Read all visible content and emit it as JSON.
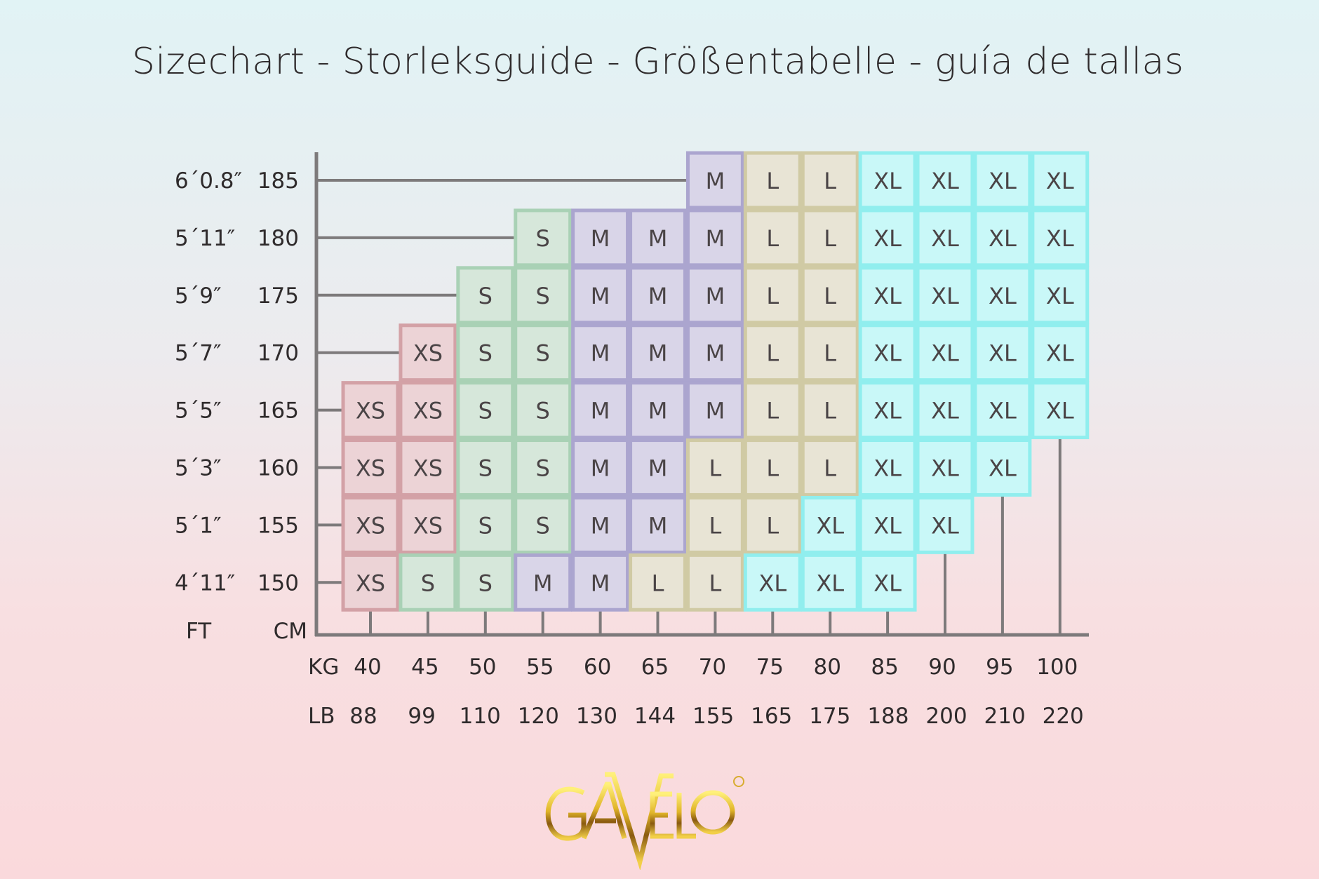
{
  "title": "Sizechart - Storleksguide - Größentabelle - guía de tallas",
  "logo_text": "GAVELO",
  "chart_data": {
    "type": "table",
    "y_header_ft": "FT",
    "y_header_cm": "CM",
    "x_header_kg": "KG",
    "x_header_lb": "LB",
    "height_ft": [
      "6´0.8″",
      "5´11″",
      "5´9″",
      "5´7″",
      "5´5″",
      "5´3″",
      "5´1″",
      "4´11″"
    ],
    "height_cm": [
      "185",
      "180",
      "175",
      "170",
      "165",
      "160",
      "155",
      "150"
    ],
    "weight_kg": [
      "40",
      "45",
      "50",
      "55",
      "60",
      "65",
      "70",
      "75",
      "80",
      "85",
      "90",
      "95",
      "100"
    ],
    "weight_lb": [
      "88",
      "99",
      "110",
      "120",
      "130",
      "144",
      "155",
      "165",
      "175",
      "188",
      "200",
      "210",
      "220"
    ],
    "sizes": [
      [
        null,
        null,
        null,
        null,
        null,
        null,
        "M",
        "L",
        "L",
        "XL",
        "XL",
        "XL",
        "XL"
      ],
      [
        null,
        null,
        null,
        "S",
        "M",
        "M",
        "M",
        "L",
        "L",
        "XL",
        "XL",
        "XL",
        "XL"
      ],
      [
        null,
        null,
        "S",
        "S",
        "M",
        "M",
        "M",
        "L",
        "L",
        "XL",
        "XL",
        "XL",
        "XL"
      ],
      [
        null,
        "XS",
        "S",
        "S",
        "M",
        "M",
        "M",
        "L",
        "L",
        "XL",
        "XL",
        "XL",
        "XL"
      ],
      [
        "XS",
        "XS",
        "S",
        "S",
        "M",
        "M",
        "M",
        "L",
        "L",
        "XL",
        "XL",
        "XL",
        "XL"
      ],
      [
        "XS",
        "XS",
        "S",
        "S",
        "M",
        "M",
        "L",
        "L",
        "L",
        "XL",
        "XL",
        "XL",
        null
      ],
      [
        "XS",
        "XS",
        "S",
        "S",
        "M",
        "M",
        "L",
        "L",
        "XL",
        "XL",
        "XL",
        null,
        null
      ],
      [
        "XS",
        "S",
        "S",
        "M",
        "M",
        "L",
        "L",
        "XL",
        "XL",
        "XL",
        null,
        null,
        null
      ]
    ],
    "size_colors": {
      "XS": {
        "fill": "#ecd3d6",
        "border": "#d3a1a6"
      },
      "S": {
        "fill": "#d6e7da",
        "border": "#a9d1b5"
      },
      "M": {
        "fill": "#d9d5e8",
        "border": "#aba5cf"
      },
      "L": {
        "fill": "#e8e4d5",
        "border": "#d0caa4"
      },
      "XL": {
        "fill": "#c9f8f8",
        "border": "#90eeee"
      }
    },
    "axis_color": "#7d7a7b",
    "background_top": "#e1f3f5",
    "background_bottom": "#fad9dc"
  }
}
